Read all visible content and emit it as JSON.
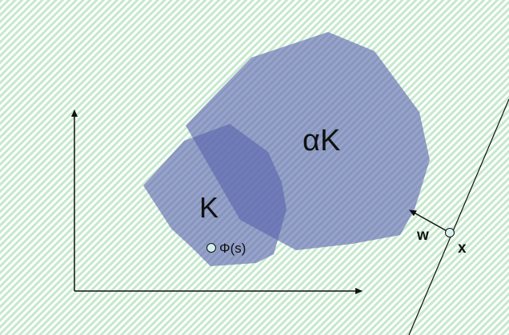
{
  "labels": {
    "big_set": "αK",
    "small_set": "K",
    "point_phi": "Φ(s)",
    "vector_w": "w",
    "point_x": "x"
  },
  "colors": {
    "background_stripe": "#c6e8cc",
    "background_base": "#ffffff",
    "set_fill": "#5862ad",
    "point_fill": "#d6f0ef",
    "line": "#111111"
  }
}
